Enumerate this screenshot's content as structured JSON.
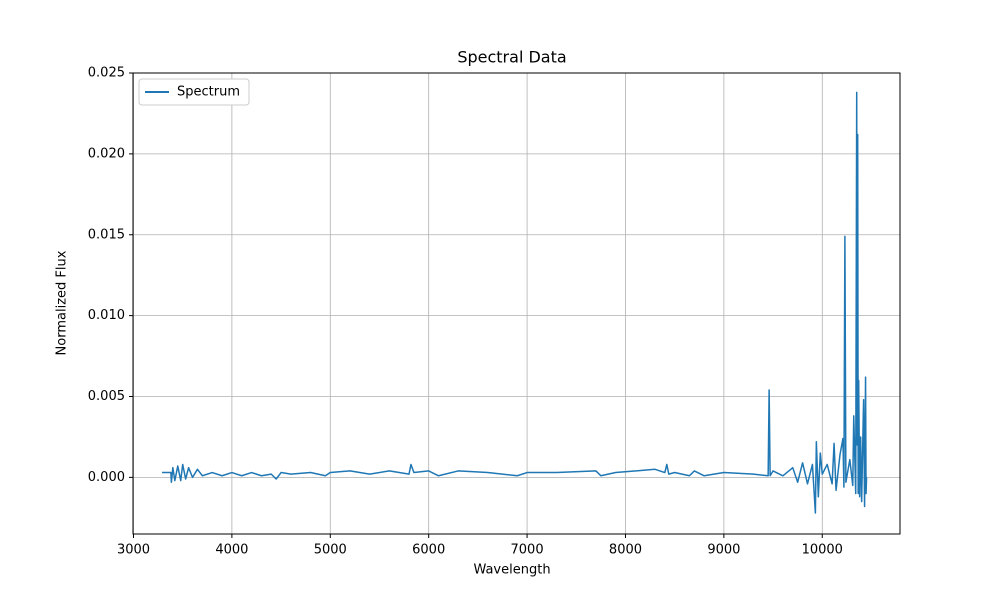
{
  "chart_data": {
    "type": "line",
    "title": "Spectral Data",
    "x_label": "Wavelength",
    "y_label": "Normalized Flux",
    "x": [
      3290,
      3380,
      3385,
      3400,
      3420,
      3450,
      3480,
      3500,
      3530,
      3560,
      3600,
      3650,
      3700,
      3800,
      3900,
      4000,
      4100,
      4200,
      4300,
      4400,
      4450,
      4500,
      4600,
      4800,
      4950,
      5000,
      5200,
      5400,
      5600,
      5800,
      5820,
      5850,
      6000,
      6100,
      6300,
      6600,
      6900,
      7000,
      7300,
      7700,
      7750,
      7900,
      8300,
      8400,
      8420,
      8440,
      8500,
      8650,
      8700,
      8800,
      9000,
      9300,
      9450,
      9460,
      9470,
      9500,
      9600,
      9700,
      9750,
      9800,
      9850,
      9900,
      9930,
      9940,
      9960,
      9980,
      10000,
      10050,
      10100,
      10120,
      10140,
      10180,
      10210,
      10220,
      10230,
      10240,
      10280,
      10310,
      10320,
      10340,
      10350,
      10355,
      10360,
      10365,
      10370,
      10380,
      10390,
      10400,
      10420,
      10430,
      10440,
      10445,
      10450
    ],
    "series": [
      {
        "name": "Spectrum",
        "color": "#1f77b4",
        "values": [
          0.0003,
          0.0003,
          -0.0003,
          0.0006,
          -0.0002,
          0.0007,
          -0.0002,
          0.0008,
          -0.0001,
          0.0006,
          0.0,
          0.0005,
          0.0001,
          0.0003,
          0.0001,
          0.0003,
          0.0001,
          0.0003,
          0.0001,
          0.0002,
          -0.0001,
          0.0003,
          0.0002,
          0.0003,
          0.0001,
          0.0003,
          0.0004,
          0.0002,
          0.0004,
          0.0002,
          0.0008,
          0.0003,
          0.0004,
          0.0001,
          0.0004,
          0.0003,
          0.0001,
          0.0003,
          0.0003,
          0.0004,
          0.0001,
          0.0003,
          0.0005,
          0.0003,
          0.0008,
          0.0002,
          0.0003,
          0.0001,
          0.0004,
          0.0001,
          0.0003,
          0.0002,
          0.0001,
          0.0054,
          0.0001,
          0.0004,
          0.0001,
          0.0006,
          -0.0003,
          0.0009,
          -0.0004,
          0.0008,
          -0.0022,
          0.0022,
          -0.0012,
          0.0015,
          0.0002,
          0.0008,
          -0.0004,
          0.0021,
          -0.0008,
          0.0014,
          0.0024,
          -0.0006,
          0.0149,
          -0.0003,
          0.0011,
          -0.0005,
          0.0038,
          -0.001,
          0.0238,
          0.002,
          0.0212,
          -0.001,
          0.006,
          -0.0012,
          0.0025,
          -0.0015,
          0.0048,
          -0.0018,
          0.0062,
          -0.001,
          0.0
        ]
      }
    ],
    "xlim": [
      2995,
      10790
    ],
    "ylim": [
      -0.0035,
      0.025
    ],
    "xticks": [
      3000,
      4000,
      5000,
      6000,
      7000,
      8000,
      9000,
      10000
    ],
    "yticks": [
      {
        "value": 0,
        "label": "0.000"
      },
      {
        "value": 0.005,
        "label": "0.005"
      },
      {
        "value": 0.01,
        "label": "0.010"
      },
      {
        "value": 0.015,
        "label": "0.015"
      },
      {
        "value": 0.02,
        "label": "0.020"
      },
      {
        "value": 0.025,
        "label": "0.025"
      }
    ],
    "grid": true,
    "legend": "upper-left"
  }
}
